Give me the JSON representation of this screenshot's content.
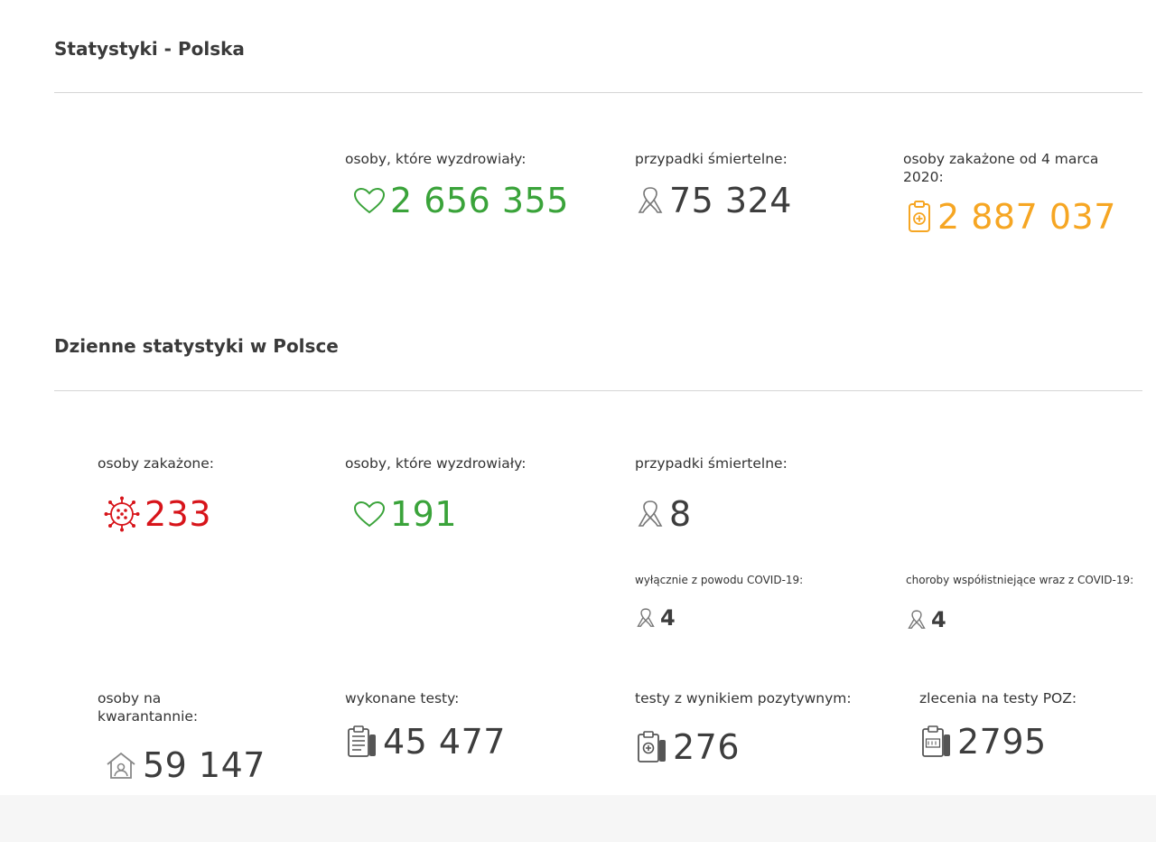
{
  "sections": {
    "poland_title": "Statystyki - Polska",
    "daily_title": "Dzienne statystyki w Polsce"
  },
  "totals": {
    "recovered": {
      "label": "osoby, które wyzdrowiały:",
      "value": "2 656 355",
      "icon": "heart-icon"
    },
    "deaths": {
      "label": "przypadki śmiertelne:",
      "value": "75 324",
      "icon": "ribbon-icon"
    },
    "infected": {
      "label": "osoby zakażone od 4 marca 2020:",
      "value": "2 887 037",
      "icon": "clipboard-medical-icon"
    }
  },
  "daily": {
    "infected": {
      "label": "osoby zakażone:",
      "value": "233",
      "icon": "virus-icon"
    },
    "recovered": {
      "label": "osoby, które wyzdrowiały:",
      "value": "191",
      "icon": "heart-icon"
    },
    "deaths": {
      "label": "przypadki śmiertelne:",
      "value": "8",
      "icon": "ribbon-icon"
    },
    "deaths_covid_only": {
      "label": "wyłącznie z powodu COVID-19:",
      "value": "4",
      "icon": "ribbon-icon"
    },
    "deaths_comorbid": {
      "label": "choroby współistniejące wraz z COVID-19:",
      "value": "4",
      "icon": "ribbon-icon"
    },
    "quarantine": {
      "label": "osoby na kwarantannie:",
      "value": "59 147",
      "icon": "house-person-icon"
    },
    "tests": {
      "label": "wykonane testy:",
      "value": "45 477",
      "icon": "test-clipboard-icon"
    },
    "positive_tests": {
      "label": "testy z wynikiem pozytywnym:",
      "value": "276",
      "icon": "test-positive-icon"
    },
    "poz_orders": {
      "label": "zlecenia na testy POZ:",
      "value": "2795",
      "icon": "poz-test-icon"
    }
  },
  "colors": {
    "green": "#3aa33a",
    "orange": "#f6a623",
    "red": "#d7141a",
    "dark": "#3d3d3d"
  }
}
